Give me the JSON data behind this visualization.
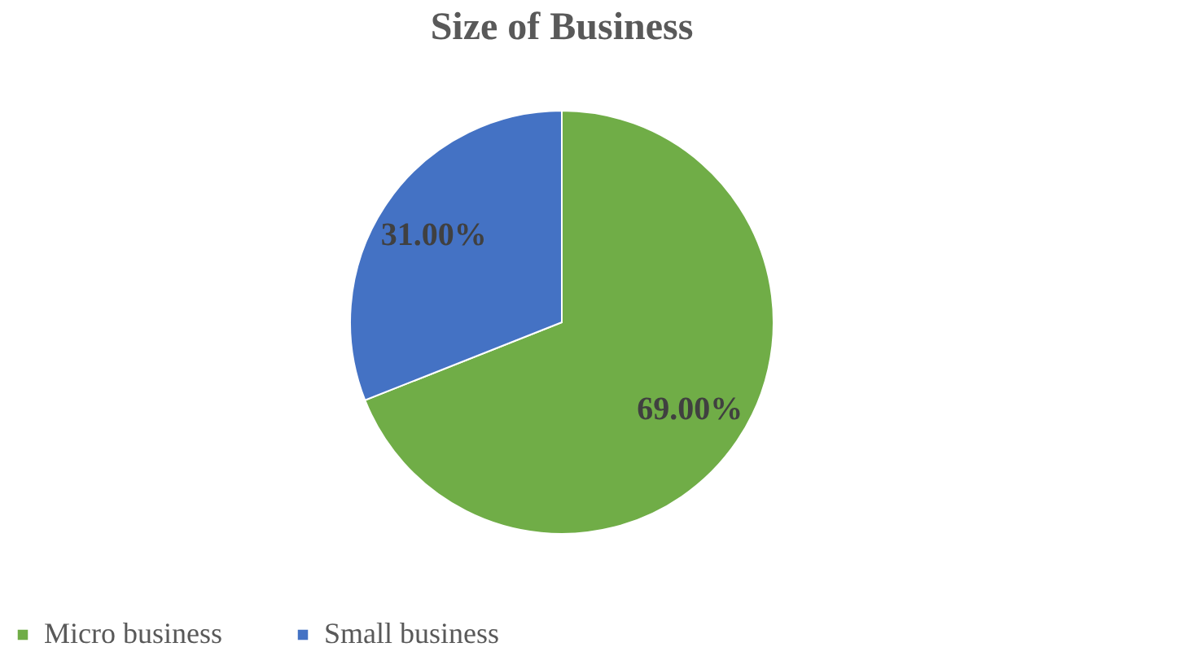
{
  "chart_data": {
    "type": "pie",
    "title": "Size of Business",
    "categories": [
      "Micro business",
      "Small business"
    ],
    "values": [
      69,
      31
    ],
    "colors": [
      "#70ad47",
      "#4472c4"
    ],
    "value_labels": [
      "69.00%",
      "31.00%"
    ],
    "legend": "bottom"
  }
}
